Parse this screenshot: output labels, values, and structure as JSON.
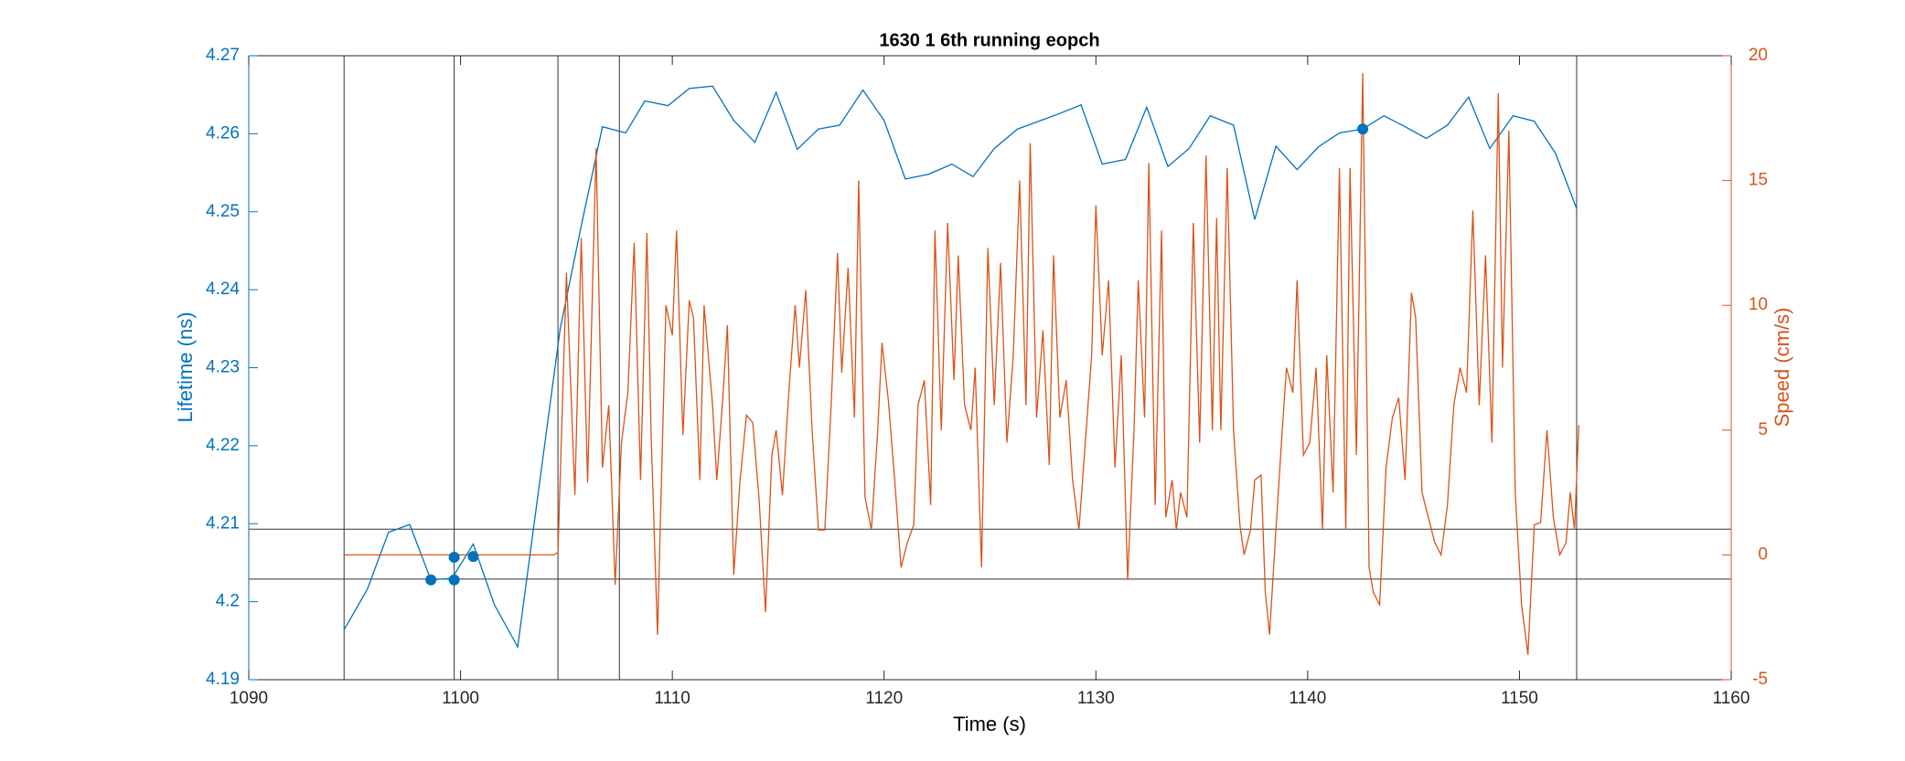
{
  "chart_data": {
    "type": "line",
    "title": "1630 1 6th running eopch",
    "xlabel": "Time (s)",
    "ylabel": "Lifetime (ns)",
    "y2label": "Speed (cm/s)",
    "xlim": [
      1090,
      1160
    ],
    "xticks": [
      1090,
      1100,
      1110,
      1120,
      1130,
      1140,
      1150,
      1160
    ],
    "ylim": [
      4.19,
      4.27
    ],
    "yticks": [
      4.19,
      4.2,
      4.21,
      4.22,
      4.23,
      4.24,
      4.25,
      4.26,
      4.27
    ],
    "y2lim": [
      -5,
      20
    ],
    "y2ticks": [
      -5,
      0,
      5,
      10,
      15,
      20
    ],
    "ycolor": "#0072BD",
    "y2color": "#D95319",
    "vlines": [
      1094.5,
      1099.7,
      1104.6,
      1107.5,
      1152.7
    ],
    "hlines": [
      4.2093,
      4.2029
    ],
    "series": [
      {
        "name": "Lifetime",
        "color": "#0072BD",
        "style": "line",
        "x": [
          1094.5,
          1095.6,
          1096.6,
          1097.6,
          1098.6,
          1099.6,
          1100.6,
          1101.6,
          1102.7,
          1103.7,
          1104.7,
          1105.7,
          1106.7,
          1107.8,
          1108.7,
          1109.8,
          1110.8,
          1111.9,
          1112.9,
          1113.9,
          1114.9,
          1115.9,
          1116.9,
          1117.9,
          1119.0,
          1120.0,
          1121.0,
          1122.1,
          1123.2,
          1124.2,
          1125.2,
          1126.3,
          1127.3,
          1128.3,
          1129.3,
          1130.3,
          1131.4,
          1132.4,
          1133.4,
          1134.4,
          1135.4,
          1136.5,
          1137.5,
          1138.5,
          1139.5,
          1140.5,
          1141.5,
          1142.6,
          1143.6,
          1144.6,
          1145.6,
          1146.6,
          1147.6,
          1148.6,
          1149.7,
          1150.7,
          1151.7,
          1152.7
        ],
        "values": [
          4.1964,
          4.2016,
          4.2089,
          4.2099,
          4.2028,
          4.203,
          4.2074,
          4.1996,
          4.1942,
          4.2146,
          4.2349,
          4.2482,
          4.2609,
          4.2601,
          4.2642,
          4.2636,
          4.2658,
          4.2661,
          4.2617,
          4.2589,
          4.2653,
          4.258,
          4.2606,
          4.2611,
          4.2656,
          4.2617,
          4.2542,
          4.2548,
          4.2561,
          4.2545,
          4.2581,
          4.2606,
          4.2616,
          4.2626,
          4.2637,
          4.2561,
          4.2567,
          4.2634,
          4.2558,
          4.2581,
          4.2623,
          4.2611,
          4.249,
          4.2584,
          4.2554,
          4.2583,
          4.2601,
          4.2606,
          4.2623,
          4.2609,
          4.2594,
          4.2611,
          4.2647,
          4.2581,
          4.2623,
          4.2616,
          4.2575,
          4.2504
        ]
      },
      {
        "name": "Speed",
        "color": "#D95319",
        "style": "line",
        "axis": "y2",
        "x": [
          1094.5,
          1104.4,
          1104.6,
          1105.0,
          1105.4,
          1105.7,
          1106.0,
          1106.4,
          1106.7,
          1107.0,
          1107.3,
          1107.6,
          1107.9,
          1108.2,
          1108.5,
          1108.8,
          1109.0,
          1109.3,
          1109.7,
          1110.0,
          1110.2,
          1110.5,
          1110.8,
          1111.0,
          1111.3,
          1111.5,
          1111.9,
          1112.1,
          1112.4,
          1112.6,
          1112.9,
          1113.2,
          1113.5,
          1113.8,
          1114.1,
          1114.4,
          1114.7,
          1114.9,
          1115.2,
          1115.5,
          1115.8,
          1116.0,
          1116.3,
          1116.6,
          1116.9,
          1117.2,
          1117.5,
          1117.8,
          1118.0,
          1118.3,
          1118.6,
          1118.8,
          1119.1,
          1119.4,
          1119.7,
          1119.9,
          1120.2,
          1120.5,
          1120.8,
          1121.1,
          1121.4,
          1121.6,
          1121.9,
          1122.2,
          1122.4,
          1122.7,
          1123.0,
          1123.3,
          1123.5,
          1123.8,
          1124.1,
          1124.3,
          1124.6,
          1124.9,
          1125.2,
          1125.5,
          1125.8,
          1126.1,
          1126.4,
          1126.7,
          1126.9,
          1127.2,
          1127.5,
          1127.8,
          1128.0,
          1128.3,
          1128.6,
          1128.9,
          1129.2,
          1129.5,
          1129.8,
          1130.0,
          1130.3,
          1130.6,
          1130.9,
          1131.2,
          1131.5,
          1131.8,
          1132.0,
          1132.3,
          1132.5,
          1132.8,
          1133.1,
          1133.3,
          1133.6,
          1133.8,
          1134.0,
          1134.3,
          1134.6,
          1134.9,
          1135.2,
          1135.5,
          1135.7,
          1135.9,
          1136.2,
          1136.5,
          1136.8,
          1137.0,
          1137.3,
          1137.5,
          1137.8,
          1138.0,
          1138.2,
          1138.5,
          1138.8,
          1139.0,
          1139.3,
          1139.5,
          1139.8,
          1140.1,
          1140.4,
          1140.7,
          1140.9,
          1141.2,
          1141.5,
          1141.8,
          1142.0,
          1142.3,
          1142.6,
          1142.9,
          1143.1,
          1143.4,
          1143.7,
          1144.0,
          1144.3,
          1144.6,
          1144.9,
          1145.1,
          1145.4,
          1145.7,
          1146.0,
          1146.3,
          1146.6,
          1146.9,
          1147.2,
          1147.5,
          1147.8,
          1148.1,
          1148.4,
          1148.7,
          1149.0,
          1149.2,
          1149.5,
          1149.8,
          1150.1,
          1150.4,
          1150.7,
          1151.0,
          1151.3,
          1151.6,
          1151.9,
          1152.2,
          1152.4,
          1152.6,
          1152.8
        ],
        "values": [
          0,
          0,
          0.1,
          11.3,
          2.4,
          12.7,
          2.9,
          16.3,
          3.5,
          6.0,
          -1.2,
          4.5,
          6.5,
          12.5,
          3.0,
          12.9,
          4.8,
          -3.2,
          10.0,
          8.8,
          13.0,
          4.8,
          10.2,
          9.5,
          3.0,
          10.0,
          6.0,
          3.0,
          6.5,
          9.2,
          -0.8,
          3.0,
          5.6,
          5.3,
          2.2,
          -2.3,
          4.0,
          5.0,
          2.4,
          6.5,
          10.0,
          7.5,
          10.6,
          5.0,
          1.0,
          1.0,
          6.0,
          12.1,
          7.3,
          11.5,
          5.5,
          15.0,
          2.3,
          1.0,
          5.0,
          8.5,
          6.2,
          3.0,
          -0.5,
          0.5,
          1.2,
          6.0,
          7.0,
          2.0,
          13.0,
          5.0,
          13.3,
          7.0,
          12.0,
          6.0,
          5.0,
          7.5,
          -0.5,
          12.3,
          6.0,
          11.7,
          4.5,
          8.0,
          15.0,
          6.0,
          16.5,
          5.5,
          9.0,
          3.6,
          12.0,
          5.5,
          7.0,
          3.0,
          1.0,
          4.5,
          8.0,
          14.0,
          8.0,
          11.0,
          3.5,
          8.0,
          -1.0,
          5.0,
          11.0,
          5.5,
          15.7,
          2.0,
          13.0,
          1.5,
          3.0,
          1.0,
          2.5,
          1.5,
          13.3,
          4.5,
          16.0,
          5.0,
          13.5,
          5.0,
          15.5,
          5.0,
          1.2,
          0.0,
          1.0,
          3.0,
          3.2,
          -1.5,
          -3.2,
          1.0,
          5.0,
          7.5,
          6.5,
          11.0,
          4.0,
          4.5,
          7.5,
          1.0,
          8.0,
          2.5,
          15.5,
          1.0,
          15.5,
          4.0,
          19.3,
          -0.5,
          -1.5,
          -2.0,
          3.5,
          5.5,
          6.3,
          3.0,
          10.5,
          9.5,
          2.5,
          1.5,
          0.5,
          0,
          2.0,
          6.0,
          7.5,
          6.5,
          13.8,
          6.0,
          12.0,
          4.5,
          18.5,
          7.5,
          17.0,
          2.5,
          -2.0,
          -4.0,
          1.2,
          1.3,
          5.0,
          1.5,
          0.0,
          0.5,
          2.5,
          1.0,
          5.2
        ]
      },
      {
        "name": "Selected",
        "color": "#0072BD",
        "style": "markers",
        "x": [
          1098.6,
          1099.7,
          1099.7,
          1100.6,
          1142.6
        ],
        "values": [
          4.2028,
          4.2057,
          4.2028,
          4.2058,
          4.2606
        ]
      }
    ]
  }
}
